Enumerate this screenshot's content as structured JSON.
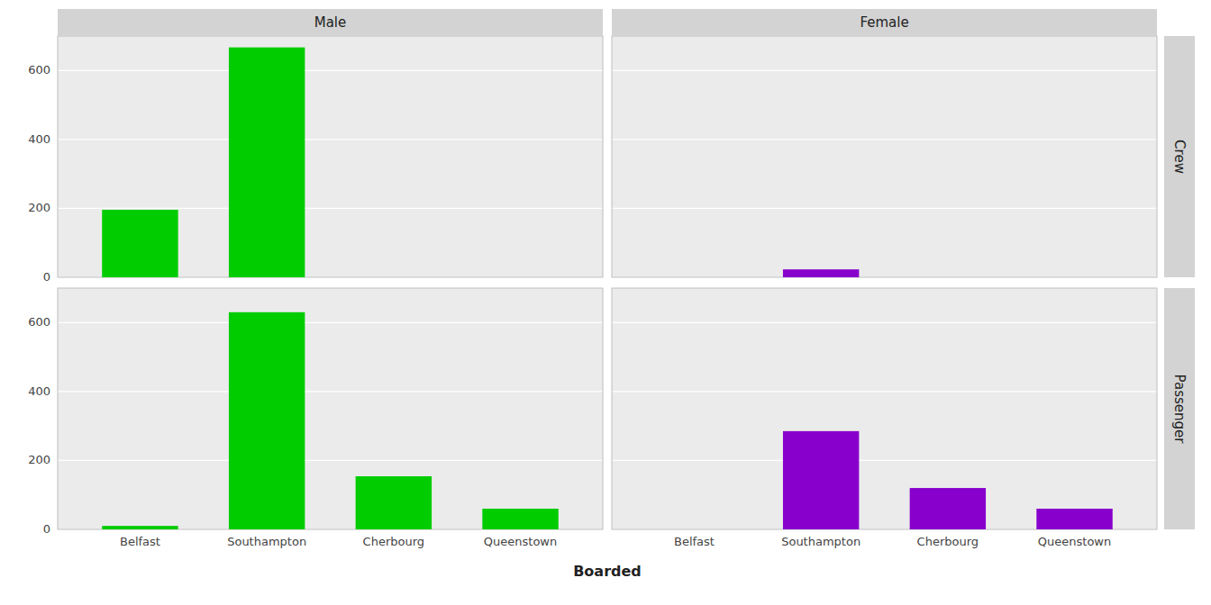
{
  "chart_data": [
    {
      "type": "bar",
      "title": "Male",
      "categories": [
        "Belfast",
        "Southampton",
        "Cherbourg",
        "Queenstown"
      ],
      "values": [
        196,
        667,
        0,
        0
      ],
      "color": "#00CC00",
      "ylim": [
        0,
        700
      ],
      "yticks": [
        0,
        200,
        400,
        600
      ],
      "grid": true,
      "tick_labels": "y"
    },
    {
      "type": "bar",
      "title": "Female",
      "annotations": [
        "Crew"
      ],
      "categories": [
        "Belfast",
        "Southampton",
        "Cherbourg",
        "Queenstown"
      ],
      "values": [
        0,
        23,
        0,
        0
      ],
      "color": "#8800CC",
      "ylim": [
        0,
        700
      ],
      "yticks": [
        0,
        200,
        400,
        600
      ],
      "grid": true,
      "tick_labels": false
    },
    {
      "type": "bar",
      "xlabel": "Boarded",
      "categories": [
        "Belfast",
        "Southampton",
        "Cherbourg",
        "Queenstown"
      ],
      "values": [
        10,
        630,
        154,
        60
      ],
      "color": "#00CC00",
      "ylim": [
        0,
        700
      ],
      "yticks": [
        0,
        200,
        400,
        600
      ],
      "grid": true
    },
    {
      "type": "bar",
      "annotations": [
        "Passenger"
      ],
      "categories": [
        "Belfast",
        "Southampton",
        "Cherbourg",
        "Queenstown"
      ],
      "values": [
        0,
        285,
        120,
        60
      ],
      "color": "#8800CC",
      "ylim": [
        0,
        700
      ],
      "yticks": [
        0,
        200,
        400,
        600
      ],
      "grid": true,
      "tick_labels": "x"
    }
  ]
}
